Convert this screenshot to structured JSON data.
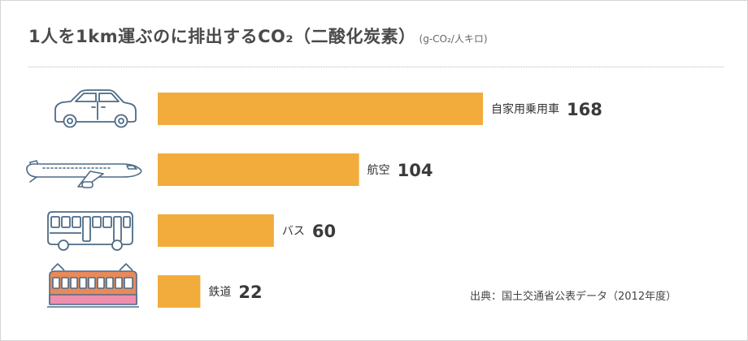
{
  "title": {
    "main": "1人を1km運ぶのに排出するCO₂（二酸化炭素）",
    "unit": "(g-CO₂/人キロ)"
  },
  "source": "出典：国土交通省公表データ（2012年度）",
  "colors": {
    "bar": "#f2ac3c",
    "text": "#333333",
    "rule": "#b5b5b5"
  },
  "chart_data": {
    "type": "bar",
    "orientation": "horizontal",
    "categories": [
      "自家用乗用車",
      "航空",
      "バス",
      "鉄道"
    ],
    "values": [
      168,
      104,
      60,
      22
    ],
    "icons": [
      "car-icon",
      "airplane-icon",
      "bus-icon",
      "train-icon"
    ],
    "title": "1人を1km運ぶのに排出するCO₂（二酸化炭素）",
    "unit": "(g-CO₂/人キロ)",
    "grid": false,
    "legend": "none"
  }
}
